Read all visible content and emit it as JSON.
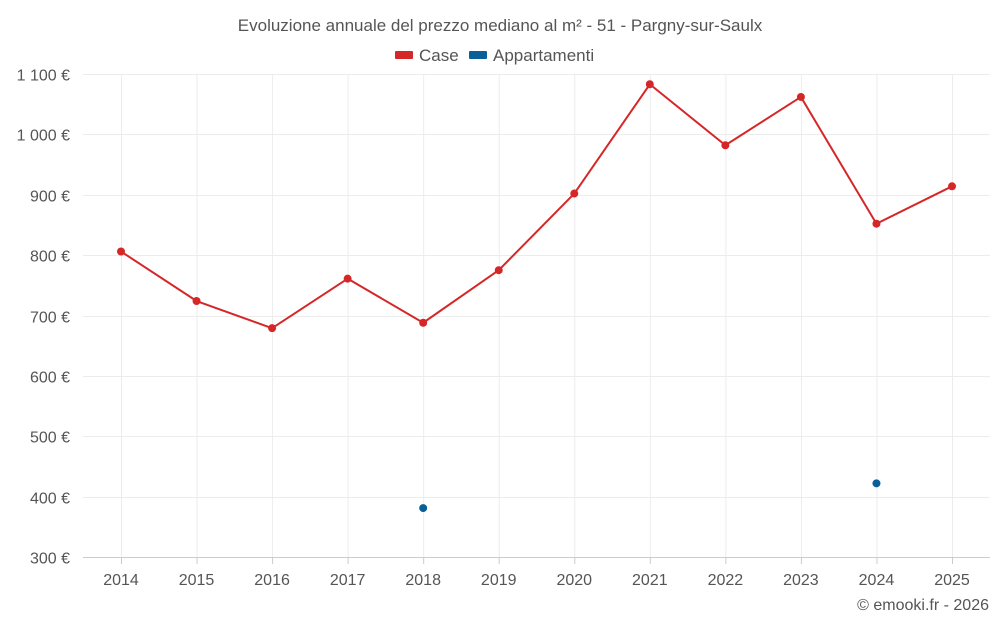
{
  "chart_data": {
    "type": "line",
    "title": "Evoluzione annuale del prezzo mediano al m² - 51 - Pargny-sur-Saulx",
    "categories": [
      "2014",
      "2015",
      "2016",
      "2017",
      "2018",
      "2019",
      "2020",
      "2021",
      "2022",
      "2023",
      "2024",
      "2025"
    ],
    "series": [
      {
        "name": "Case",
        "color": "#d62728",
        "values": [
          806,
          724,
          679,
          761,
          688,
          775,
          902,
          1083,
          982,
          1062,
          852,
          914
        ]
      },
      {
        "name": "Appartamenti",
        "color": "#0b5f99",
        "values": [
          null,
          null,
          null,
          null,
          381,
          null,
          null,
          null,
          null,
          null,
          422,
          null
        ]
      }
    ],
    "y_ticks": [
      {
        "value": 300,
        "label": "300 €"
      },
      {
        "value": 400,
        "label": "400 €"
      },
      {
        "value": 500,
        "label": "500 €"
      },
      {
        "value": 600,
        "label": "600 €"
      },
      {
        "value": 700,
        "label": "700 €"
      },
      {
        "value": 800,
        "label": "800 €"
      },
      {
        "value": 900,
        "label": "900 €"
      },
      {
        "value": 1000,
        "label": "1 000 €"
      },
      {
        "value": 1100,
        "label": "1 100 €"
      }
    ],
    "ylim": [
      300,
      1100
    ],
    "xlabel": "",
    "ylabel": "",
    "legend_position": "top-center",
    "grid": true
  },
  "legend": {
    "case_label": "Case",
    "appartamenti_label": "Appartamenti"
  },
  "credit": "© emooki.fr - 2026"
}
